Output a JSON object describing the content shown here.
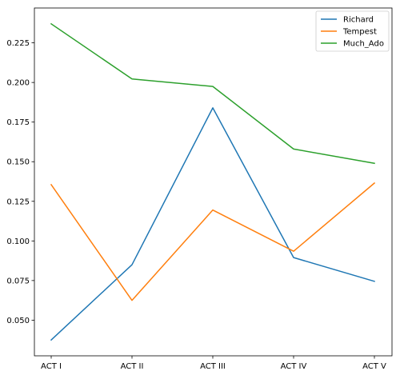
{
  "chart_data": {
    "type": "line",
    "categories": [
      "ACT I",
      "ACT II",
      "ACT III",
      "ACT IV",
      "ACT V"
    ],
    "series": [
      {
        "name": "Richard",
        "color": "#1f77b4",
        "values": [
          0.0375,
          0.085,
          0.184,
          0.0895,
          0.0745
        ]
      },
      {
        "name": "Tempest",
        "color": "#ff7f0e",
        "values": [
          0.1355,
          0.0625,
          0.1195,
          0.0935,
          0.1365
        ]
      },
      {
        "name": "Much_Ado",
        "color": "#2ca02c",
        "values": [
          0.237,
          0.2022,
          0.1975,
          0.158,
          0.149
        ]
      }
    ],
    "yticks": [
      0.05,
      0.075,
      0.1,
      0.125,
      0.15,
      0.175,
      0.2,
      0.225
    ],
    "ytick_labels": [
      "0.050",
      "0.075",
      "0.100",
      "0.125",
      "0.150",
      "0.175",
      "0.200",
      "0.225"
    ],
    "ylim": [
      0.0275,
      0.247
    ],
    "title": "",
    "xlabel": "",
    "ylabel": "",
    "grid": false,
    "legend_position": "top-right"
  }
}
